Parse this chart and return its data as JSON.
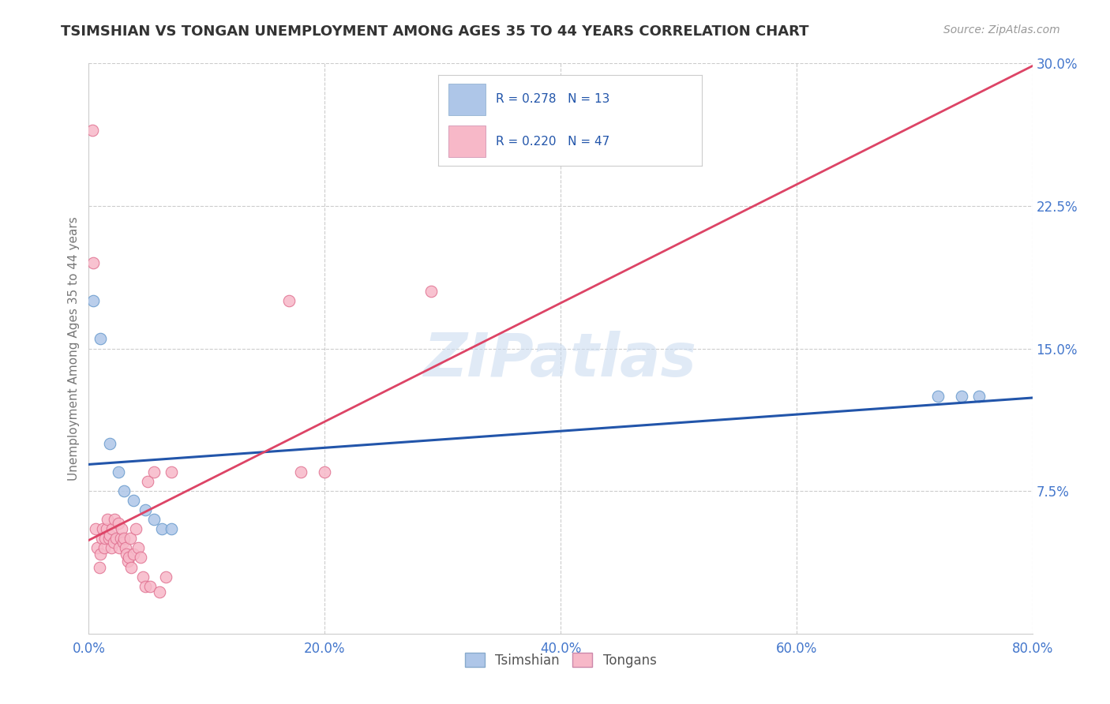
{
  "title": "TSIMSHIAN VS TONGAN UNEMPLOYMENT AMONG AGES 35 TO 44 YEARS CORRELATION CHART",
  "source": "Source: ZipAtlas.com",
  "ylabel": "Unemployment Among Ages 35 to 44 years",
  "xlim": [
    0.0,
    0.8
  ],
  "ylim": [
    0.0,
    0.3
  ],
  "xticks": [
    0.0,
    0.2,
    0.4,
    0.6,
    0.8
  ],
  "yticks": [
    0.075,
    0.15,
    0.225,
    0.3
  ],
  "ytick_labels": [
    "7.5%",
    "15.0%",
    "22.5%",
    "30.0%"
  ],
  "xtick_labels": [
    "0.0%",
    "20.0%",
    "40.0%",
    "60.0%",
    "80.0%"
  ],
  "watermark": "ZIPatlas",
  "tsimshian": {
    "scatter_color": "#aec6e8",
    "scatter_edgecolor": "#6699cc",
    "line_color": "#2255aa",
    "x": [
      0.004,
      0.01,
      0.018,
      0.025,
      0.03,
      0.038,
      0.048,
      0.055,
      0.062,
      0.07,
      0.72,
      0.74,
      0.755
    ],
    "y": [
      0.175,
      0.155,
      0.1,
      0.085,
      0.075,
      0.07,
      0.065,
      0.06,
      0.055,
      0.055,
      0.125,
      0.125,
      0.125
    ]
  },
  "tongan": {
    "scatter_color": "#f7b8c8",
    "scatter_edgecolor": "#e07090",
    "line_color": "#dd4466",
    "dashed_color": "#ddaacc",
    "x": [
      0.003,
      0.004,
      0.006,
      0.007,
      0.009,
      0.01,
      0.011,
      0.012,
      0.013,
      0.014,
      0.015,
      0.016,
      0.017,
      0.018,
      0.019,
      0.02,
      0.021,
      0.022,
      0.023,
      0.025,
      0.026,
      0.027,
      0.028,
      0.029,
      0.03,
      0.031,
      0.032,
      0.033,
      0.034,
      0.035,
      0.036,
      0.038,
      0.04,
      0.042,
      0.044,
      0.046,
      0.048,
      0.05,
      0.052,
      0.055,
      0.06,
      0.065,
      0.07,
      0.17,
      0.18,
      0.2,
      0.29
    ],
    "y": [
      0.265,
      0.195,
      0.055,
      0.045,
      0.035,
      0.042,
      0.05,
      0.055,
      0.045,
      0.05,
      0.055,
      0.06,
      0.05,
      0.052,
      0.045,
      0.055,
      0.048,
      0.06,
      0.05,
      0.058,
      0.045,
      0.05,
      0.055,
      0.048,
      0.05,
      0.045,
      0.042,
      0.038,
      0.04,
      0.05,
      0.035,
      0.042,
      0.055,
      0.045,
      0.04,
      0.03,
      0.025,
      0.08,
      0.025,
      0.085,
      0.022,
      0.03,
      0.085,
      0.175,
      0.085,
      0.085,
      0.18
    ]
  },
  "background_color": "#ffffff",
  "grid_color": "#cccccc",
  "tick_color": "#4477cc",
  "title_fontsize": 13,
  "label_fontsize": 11,
  "tick_fontsize": 12
}
